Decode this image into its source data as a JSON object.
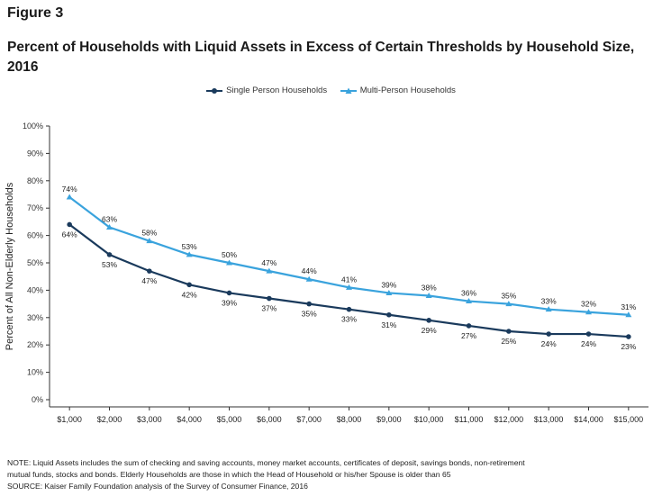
{
  "figure_label": "Figure 3",
  "chart_data": {
    "type": "line",
    "title": "Percent of Households with Liquid Assets in Excess of Certain Thresholds by Household Size, 2016",
    "ylabel": "Percent of All Non-Elderly Households",
    "xlabel": "",
    "ylim": [
      0,
      100
    ],
    "yticks": [
      "0%",
      "10%",
      "20%",
      "30%",
      "40%",
      "50%",
      "60%",
      "70%",
      "80%",
      "90%",
      "100%"
    ],
    "categories": [
      "$1,000",
      "$2,000",
      "$3,000",
      "$4,000",
      "$5,000",
      "$6,000",
      "$7,000",
      "$8,000",
      "$9,000",
      "$10,000",
      "$11,000",
      "$12,000",
      "$13,000",
      "$14,000",
      "$15,000"
    ],
    "series": [
      {
        "name": "Single Person Households",
        "color": "#1a3a5c",
        "marker": "circle",
        "label_position": "below",
        "values": [
          64,
          53,
          47,
          42,
          39,
          37,
          35,
          33,
          31,
          29,
          27,
          25,
          24,
          24,
          23
        ],
        "labels": [
          "64%",
          "53%",
          "47%",
          "42%",
          "39%",
          "37%",
          "35%",
          "33%",
          "31%",
          "29%",
          "27%",
          "25%",
          "24%",
          "24%",
          "23%"
        ]
      },
      {
        "name": "Multi-Person Households",
        "color": "#3aa3dd",
        "marker": "triangle",
        "label_position": "above",
        "values": [
          74,
          63,
          58,
          53,
          50,
          47,
          44,
          41,
          39,
          38,
          36,
          35,
          33,
          32,
          31
        ],
        "labels": [
          "74%",
          "63%",
          "58%",
          "53%",
          "50%",
          "47%",
          "44%",
          "41%",
          "39%",
          "38%",
          "36%",
          "35%",
          "33%",
          "32%",
          "31%"
        ]
      }
    ],
    "grid": false,
    "legend_position": "top-center"
  },
  "notes": {
    "line1": "NOTE: Liquid Assets includes the sum of checking and saving accounts, money market accounts, certificates of deposit, savings bonds, non-retirement",
    "line2": "mutual funds, stocks and bonds.  Elderly Households are those in which the Head of Household or his/her Spouse is older than 65",
    "source": "SOURCE: Kaiser Family Foundation analysis of the Survey of Consumer Finance, 2016"
  }
}
